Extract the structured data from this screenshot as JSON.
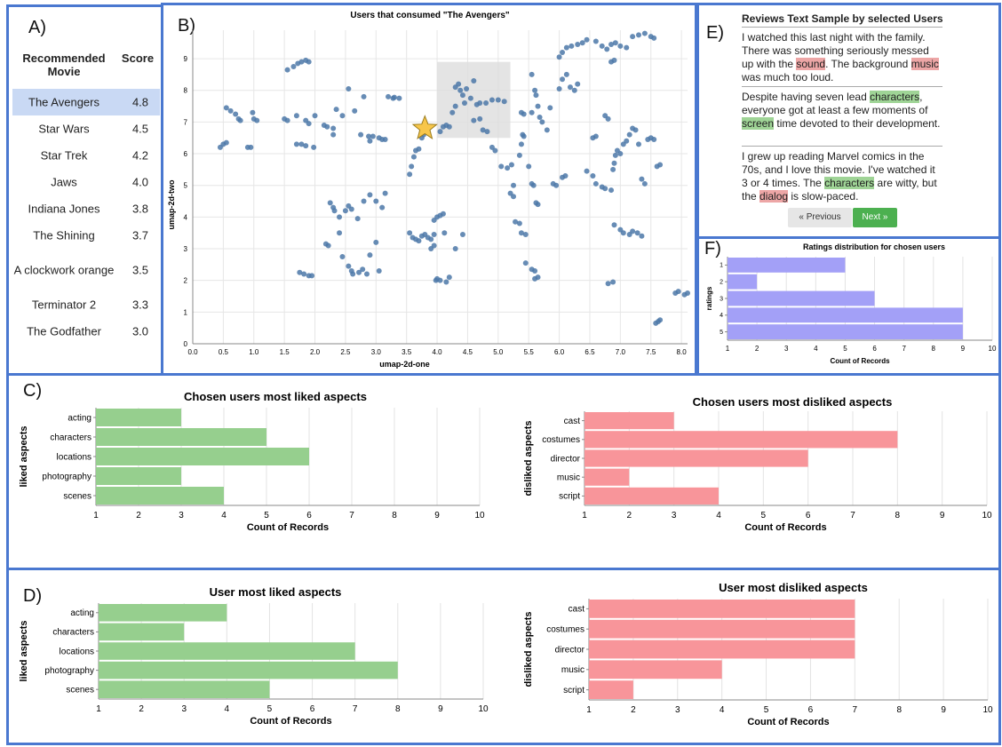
{
  "panel_labels": {
    "a": "A)",
    "b": "B)",
    "c": "C)",
    "d": "D)",
    "e": "E)",
    "f": "F)"
  },
  "colors": {
    "border": "#4a78d0",
    "scatter": "#4c78a8",
    "liked": "#96cf8e",
    "disliked": "#f8959a",
    "ratings": "#a3a0f7",
    "selected_row": "#c9d9f4",
    "star": "#f7c64a"
  },
  "recommendations": {
    "col_movie": "Recommended Movie",
    "col_score": "Score",
    "rows": [
      {
        "movie": "The Avengers",
        "score": "4.8",
        "selected": true
      },
      {
        "movie": "Star Wars",
        "score": "4.5"
      },
      {
        "movie": "Star Trek",
        "score": "4.2"
      },
      {
        "movie": "Jaws",
        "score": "4.0"
      },
      {
        "movie": "Indiana Jones",
        "score": "3.8"
      },
      {
        "movie": "The Shining",
        "score": "3.7"
      },
      {
        "movie": "A clockwork orange",
        "score": "3.5"
      },
      {
        "movie": "Terminator 2",
        "score": "3.3"
      },
      {
        "movie": "The Godfather",
        "score": "3.0"
      }
    ]
  },
  "reviews": {
    "title": "Reviews Text Sample by selected Users",
    "items": [
      [
        {
          "t": "I watched this last night with the family. There was something seriously messed up with the "
        },
        {
          "t": "sound",
          "h": "red"
        },
        {
          "t": ". The background "
        },
        {
          "t": "music",
          "h": "red"
        },
        {
          "t": " was much too loud."
        }
      ],
      [
        {
          "t": "Despite having seven lead "
        },
        {
          "t": "characters",
          "h": "green"
        },
        {
          "t": ", everyone got at least a few moments of "
        },
        {
          "t": "screen",
          "h": "green"
        },
        {
          "t": " time devoted to their development."
        }
      ],
      [
        {
          "t": "I grew up reading Marvel comics in the 70s, and I love this movie. I've watched it 3 or 4 times. The "
        },
        {
          "t": "characters",
          "h": "green"
        },
        {
          "t": " are witty, but the "
        },
        {
          "t": "dialog",
          "h": "red"
        },
        {
          "t": " is slow-paced."
        }
      ]
    ],
    "prev_label": "« Previous",
    "next_label": "Next »"
  },
  "chart_data": [
    {
      "id": "scatter",
      "type": "scatter",
      "title": "Users that consumed \"The Avengers\"",
      "xlabel": "umap-2d-one",
      "ylabel": "umap-2d-two",
      "xlim": [
        0,
        8.1
      ],
      "ylim": [
        0,
        9.9
      ],
      "xticks": [
        "0.0",
        "0.5",
        "1.0",
        "1.5",
        "2.0",
        "2.5",
        "3.0",
        "3.5",
        "4.0",
        "4.5",
        "5.0",
        "5.5",
        "6.0",
        "6.5",
        "7.0",
        "7.5",
        "8.0"
      ],
      "yticks": [
        "0",
        "1",
        "2",
        "3",
        "4",
        "5",
        "6",
        "7",
        "8",
        "9"
      ],
      "selection_box": {
        "x": [
          4.0,
          5.2
        ],
        "y": [
          6.5,
          8.9
        ]
      },
      "selected_point": [
        3.8,
        6.8
      ],
      "points": [
        [
          0.45,
          6.2
        ],
        [
          0.5,
          6.3
        ],
        [
          0.55,
          6.35
        ],
        [
          0.55,
          7.45
        ],
        [
          0.62,
          7.35
        ],
        [
          0.7,
          7.25
        ],
        [
          0.75,
          7.1
        ],
        [
          0.78,
          7.05
        ],
        [
          0.9,
          6.2
        ],
        [
          0.95,
          6.2
        ],
        [
          0.98,
          7.3
        ],
        [
          1.0,
          7.1
        ],
        [
          1.05,
          7.05
        ],
        [
          1.5,
          7.1
        ],
        [
          1.55,
          7.05
        ],
        [
          1.55,
          8.65
        ],
        [
          1.65,
          8.75
        ],
        [
          1.72,
          8.85
        ],
        [
          1.78,
          8.9
        ],
        [
          1.85,
          8.95
        ],
        [
          1.9,
          8.9
        ],
        [
          1.7,
          7.2
        ],
        [
          1.7,
          6.3
        ],
        [
          1.78,
          6.3
        ],
        [
          1.85,
          6.25
        ],
        [
          1.98,
          6.2
        ],
        [
          1.85,
          7.05
        ],
        [
          1.9,
          6.95
        ],
        [
          2.0,
          7.2
        ],
        [
          2.15,
          6.9
        ],
        [
          2.2,
          6.85
        ],
        [
          2.3,
          6.8
        ],
        [
          2.3,
          6.6
        ],
        [
          2.35,
          7.4
        ],
        [
          2.45,
          7.2
        ],
        [
          2.55,
          8.05
        ],
        [
          2.65,
          7.35
        ],
        [
          2.75,
          6.6
        ],
        [
          2.8,
          7.8
        ],
        [
          2.88,
          6.55
        ],
        [
          2.9,
          6.4
        ],
        [
          2.95,
          6.55
        ],
        [
          3.05,
          6.5
        ],
        [
          3.1,
          6.45
        ],
        [
          3.15,
          6.45
        ],
        [
          3.2,
          7.8
        ],
        [
          3.28,
          7.75
        ],
        [
          3.3,
          7.78
        ],
        [
          3.38,
          7.75
        ],
        [
          2.25,
          4.45
        ],
        [
          2.3,
          4.3
        ],
        [
          2.32,
          4.2
        ],
        [
          2.4,
          4.0
        ],
        [
          2.5,
          4.2
        ],
        [
          2.55,
          4.35
        ],
        [
          2.6,
          4.25
        ],
        [
          2.7,
          3.95
        ],
        [
          2.8,
          4.5
        ],
        [
          2.9,
          4.7
        ],
        [
          3.0,
          4.5
        ],
        [
          3.1,
          4.3
        ],
        [
          3.15,
          4.75
        ],
        [
          2.18,
          3.15
        ],
        [
          2.22,
          3.1
        ],
        [
          2.4,
          3.5
        ],
        [
          2.45,
          2.75
        ],
        [
          2.55,
          2.45
        ],
        [
          2.6,
          2.3
        ],
        [
          2.62,
          2.2
        ],
        [
          2.72,
          2.25
        ],
        [
          2.78,
          2.35
        ],
        [
          2.85,
          2.2
        ],
        [
          2.9,
          2.8
        ],
        [
          3.0,
          3.2
        ],
        [
          3.05,
          2.3
        ],
        [
          1.75,
          2.25
        ],
        [
          1.82,
          2.2
        ],
        [
          1.9,
          2.15
        ],
        [
          1.95,
          2.15
        ],
        [
          3.55,
          3.5
        ],
        [
          3.6,
          3.35
        ],
        [
          3.65,
          3.3
        ],
        [
          3.7,
          3.25
        ],
        [
          3.75,
          3.4
        ],
        [
          3.8,
          3.45
        ],
        [
          3.85,
          3.35
        ],
        [
          3.9,
          3.3
        ],
        [
          3.95,
          3.45
        ],
        [
          3.9,
          3.0
        ],
        [
          3.95,
          3.1
        ],
        [
          3.98,
          2.0
        ],
        [
          4.0,
          2.05
        ],
        [
          4.05,
          2.0
        ],
        [
          4.15,
          1.95
        ],
        [
          4.2,
          2.1
        ],
        [
          3.95,
          3.9
        ],
        [
          4.0,
          4.0
        ],
        [
          4.05,
          4.05
        ],
        [
          4.1,
          4.1
        ],
        [
          4.12,
          3.5
        ],
        [
          4.3,
          3.0
        ],
        [
          4.42,
          3.45
        ],
        [
          3.55,
          5.35
        ],
        [
          3.58,
          5.6
        ],
        [
          3.62,
          5.9
        ],
        [
          3.65,
          6.1
        ],
        [
          3.7,
          6.15
        ],
        [
          3.75,
          6.5
        ],
        [
          3.78,
          6.6
        ],
        [
          4.05,
          6.7
        ],
        [
          4.1,
          6.85
        ],
        [
          4.15,
          6.9
        ],
        [
          4.2,
          6.85
        ],
        [
          4.25,
          7.3
        ],
        [
          4.3,
          7.5
        ],
        [
          4.3,
          8.1
        ],
        [
          4.35,
          8.2
        ],
        [
          4.38,
          8.0
        ],
        [
          4.42,
          7.85
        ],
        [
          4.45,
          7.6
        ],
        [
          4.48,
          8.05
        ],
        [
          4.55,
          7.75
        ],
        [
          4.6,
          8.3
        ],
        [
          4.65,
          7.55
        ],
        [
          4.7,
          7.6
        ],
        [
          4.8,
          7.6
        ],
        [
          4.9,
          7.7
        ],
        [
          5.0,
          7.7
        ],
        [
          5.1,
          7.65
        ],
        [
          4.6,
          7.05
        ],
        [
          4.7,
          7.1
        ],
        [
          4.75,
          6.75
        ],
        [
          4.82,
          6.7
        ],
        [
          4.9,
          6.2
        ],
        [
          4.95,
          6.1
        ],
        [
          5.05,
          5.6
        ],
        [
          5.15,
          5.55
        ],
        [
          5.22,
          5.65
        ],
        [
          5.25,
          5.0
        ],
        [
          5.2,
          4.75
        ],
        [
          5.25,
          4.65
        ],
        [
          5.28,
          3.85
        ],
        [
          5.35,
          3.8
        ],
        [
          5.38,
          3.5
        ],
        [
          5.45,
          3.45
        ],
        [
          5.45,
          2.55
        ],
        [
          5.55,
          2.35
        ],
        [
          5.6,
          2.3
        ],
        [
          5.6,
          2.05
        ],
        [
          5.65,
          2.1
        ],
        [
          5.35,
          5.95
        ],
        [
          5.38,
          6.3
        ],
        [
          5.4,
          6.6
        ],
        [
          5.42,
          6.55
        ],
        [
          5.5,
          5.6
        ],
        [
          5.55,
          5.05
        ],
        [
          5.58,
          5.0
        ],
        [
          5.62,
          4.45
        ],
        [
          5.65,
          4.4
        ],
        [
          5.38,
          7.3
        ],
        [
          5.42,
          7.25
        ],
        [
          5.55,
          7.3
        ],
        [
          5.55,
          8.5
        ],
        [
          5.6,
          8.0
        ],
        [
          5.62,
          7.85
        ],
        [
          5.65,
          7.5
        ],
        [
          5.68,
          7.15
        ],
        [
          5.72,
          7.0
        ],
        [
          5.8,
          6.75
        ],
        [
          5.85,
          7.45
        ],
        [
          5.9,
          5.05
        ],
        [
          5.95,
          5.0
        ],
        [
          6.05,
          5.25
        ],
        [
          6.1,
          5.3
        ],
        [
          6.0,
          8.05
        ],
        [
          6.05,
          8.35
        ],
        [
          6.12,
          8.5
        ],
        [
          6.18,
          8.1
        ],
        [
          6.25,
          8.0
        ],
        [
          6.3,
          8.2
        ],
        [
          6.0,
          9.05
        ],
        [
          6.05,
          9.2
        ],
        [
          6.12,
          9.35
        ],
        [
          6.2,
          9.4
        ],
        [
          6.3,
          9.45
        ],
        [
          6.38,
          9.5
        ],
        [
          6.45,
          9.6
        ],
        [
          6.6,
          9.55
        ],
        [
          6.7,
          9.4
        ],
        [
          6.78,
          9.3
        ],
        [
          6.85,
          9.45
        ],
        [
          6.92,
          9.5
        ],
        [
          7.0,
          9.4
        ],
        [
          7.1,
          9.35
        ],
        [
          7.2,
          9.7
        ],
        [
          7.3,
          9.75
        ],
        [
          7.4,
          9.8
        ],
        [
          7.5,
          9.7
        ],
        [
          7.55,
          9.65
        ],
        [
          6.85,
          8.9
        ],
        [
          6.9,
          8.95
        ],
        [
          6.45,
          5.45
        ],
        [
          6.55,
          5.3
        ],
        [
          6.6,
          5.05
        ],
        [
          6.7,
          4.95
        ],
        [
          6.75,
          4.9
        ],
        [
          6.85,
          4.85
        ],
        [
          6.88,
          5.5
        ],
        [
          6.9,
          5.7
        ],
        [
          6.92,
          5.95
        ],
        [
          6.95,
          6.1
        ],
        [
          7.0,
          6.0
        ],
        [
          7.05,
          6.3
        ],
        [
          7.1,
          6.4
        ],
        [
          7.15,
          6.6
        ],
        [
          7.2,
          6.8
        ],
        [
          7.25,
          6.75
        ],
        [
          7.3,
          6.3
        ],
        [
          7.35,
          5.2
        ],
        [
          7.4,
          5.05
        ],
        [
          7.45,
          6.45
        ],
        [
          7.5,
          6.5
        ],
        [
          7.55,
          6.45
        ],
        [
          7.6,
          5.6
        ],
        [
          7.65,
          5.65
        ],
        [
          6.55,
          6.5
        ],
        [
          6.6,
          6.55
        ],
        [
          6.75,
          7.2
        ],
        [
          6.8,
          7.1
        ],
        [
          6.9,
          3.75
        ],
        [
          7.0,
          3.6
        ],
        [
          7.05,
          3.5
        ],
        [
          7.15,
          3.45
        ],
        [
          7.2,
          3.55
        ],
        [
          7.28,
          3.5
        ],
        [
          7.35,
          3.4
        ],
        [
          6.8,
          1.9
        ],
        [
          6.88,
          1.95
        ],
        [
          7.58,
          0.65
        ],
        [
          7.62,
          0.7
        ],
        [
          7.65,
          0.75
        ],
        [
          7.9,
          1.6
        ],
        [
          7.95,
          1.65
        ],
        [
          8.05,
          1.55
        ],
        [
          8.1,
          1.6
        ]
      ]
    },
    {
      "id": "ratings",
      "type": "bar",
      "orientation": "horizontal",
      "title": "Ratings distribution for chosen users",
      "xlabel": "Count of Records",
      "ylabel": "ratings",
      "categories": [
        "1",
        "2",
        "3",
        "4",
        "5"
      ],
      "values": [
        5,
        2,
        6,
        9,
        9
      ],
      "xlim": [
        1,
        10
      ],
      "xticks": [
        "1",
        "2",
        "3",
        "4",
        "5",
        "6",
        "7",
        "8",
        "9",
        "10"
      ]
    },
    {
      "id": "c_liked",
      "type": "bar",
      "orientation": "horizontal",
      "title": "Chosen users most liked aspects",
      "xlabel": "Count of Records",
      "ylabel": "liked aspects",
      "categories": [
        "acting",
        "characters",
        "locations",
        "photography",
        "scenes"
      ],
      "values": [
        3,
        5,
        6,
        3,
        4
      ],
      "xlim": [
        1,
        10
      ],
      "xticks": [
        "1",
        "2",
        "3",
        "4",
        "5",
        "6",
        "7",
        "8",
        "9",
        "10"
      ]
    },
    {
      "id": "c_disliked",
      "type": "bar",
      "orientation": "horizontal",
      "title": "Chosen users most disliked aspects",
      "xlabel": "Count of Records",
      "ylabel": "disliked aspects",
      "categories": [
        "cast",
        "costumes",
        "director",
        "music",
        "script"
      ],
      "values": [
        3,
        8,
        6,
        2,
        4
      ],
      "xlim": [
        1,
        10
      ],
      "xticks": [
        "1",
        "2",
        "3",
        "4",
        "5",
        "6",
        "7",
        "8",
        "9",
        "10"
      ]
    },
    {
      "id": "d_liked",
      "type": "bar",
      "orientation": "horizontal",
      "title": "User most liked aspects",
      "xlabel": "Count of Records",
      "ylabel": "liked aspects",
      "categories": [
        "acting",
        "characters",
        "locations",
        "photography",
        "scenes"
      ],
      "values": [
        4,
        3,
        7,
        8,
        5
      ],
      "xlim": [
        1,
        10
      ],
      "xticks": [
        "1",
        "2",
        "3",
        "4",
        "5",
        "6",
        "7",
        "8",
        "9",
        "10"
      ]
    },
    {
      "id": "d_disliked",
      "type": "bar",
      "orientation": "horizontal",
      "title": "User most disliked aspects",
      "xlabel": "Count of Records",
      "ylabel": "disliked aspects",
      "categories": [
        "cast",
        "costumes",
        "director",
        "music",
        "script"
      ],
      "values": [
        7,
        7,
        7,
        4,
        2
      ],
      "xlim": [
        1,
        10
      ],
      "xticks": [
        "1",
        "2",
        "3",
        "4",
        "5",
        "6",
        "7",
        "8",
        "9",
        "10"
      ]
    }
  ]
}
